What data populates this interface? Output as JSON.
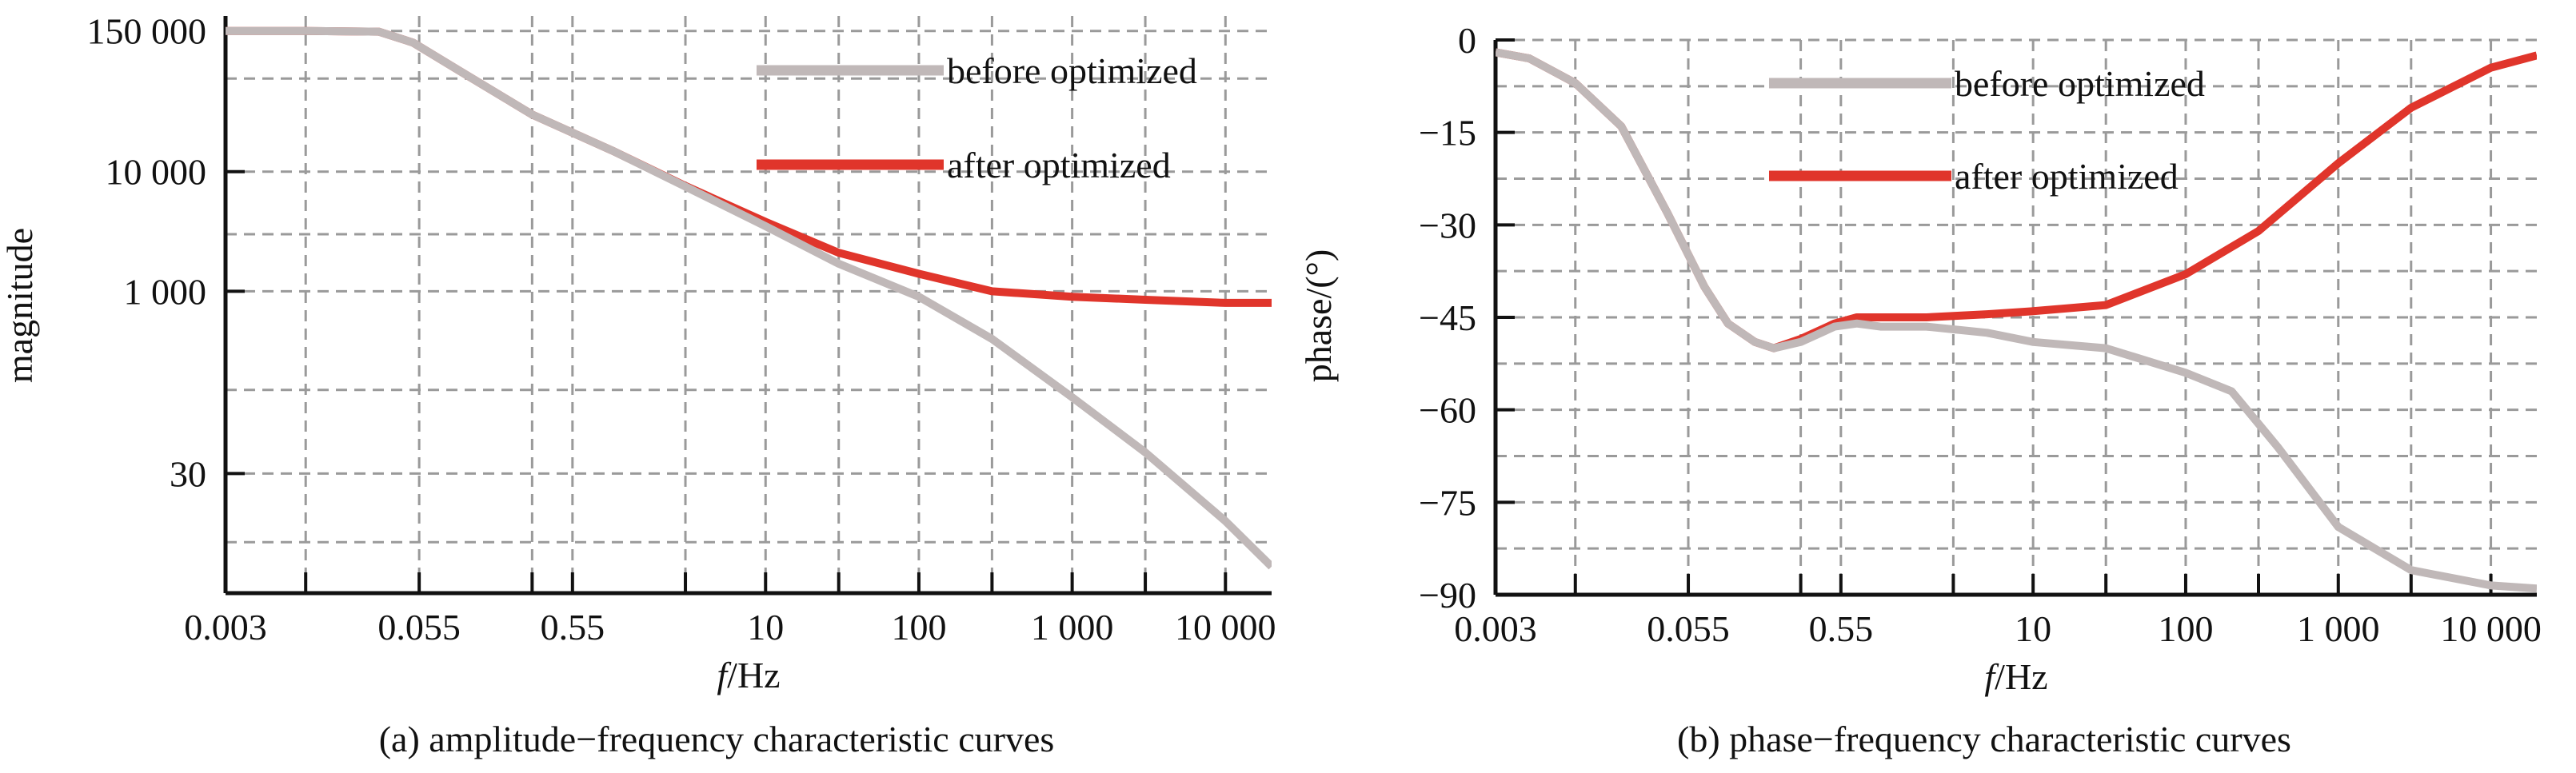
{
  "chart_data": [
    {
      "type": "line",
      "xscale": "log",
      "yscale": "log",
      "xlabel_italic": "f",
      "xlabel_rest": "/Hz",
      "ylabel": "magnitude",
      "caption": "(a) amplitude−frequency characteristic curves",
      "xlim": [
        0.003,
        20000
      ],
      "ylim": [
        3,
        200000
      ],
      "xticks": [
        {
          "value": 0.003,
          "label": "0.003"
        },
        {
          "value": 0.055,
          "label": "0.055"
        },
        {
          "value": 0.55,
          "label": "0.55"
        },
        {
          "value": 10,
          "label": "10"
        },
        {
          "value": 100,
          "label": "100"
        },
        {
          "value": 1000,
          "label": "1 000"
        },
        {
          "value": 10000,
          "label": "10 000"
        }
      ],
      "yticks": [
        {
          "value": 30,
          "label": "30"
        },
        {
          "value": 1000,
          "label": "1 000"
        },
        {
          "value": 10000,
          "label": "10 000"
        },
        {
          "value": 150000,
          "label": "150 000"
        }
      ],
      "legend": {
        "placement": "top-right"
      },
      "grid": true,
      "series": [
        {
          "name": "before optimized",
          "color": "#c0b8b8",
          "x": [
            0.003,
            0.01,
            0.03,
            0.05,
            0.1,
            0.3,
            1,
            3,
            10,
            30,
            100,
            300,
            1000,
            3000,
            10000,
            20000
          ],
          "y": [
            150000,
            150000,
            148000,
            120000,
            70000,
            30000,
            15000,
            7500,
            3500,
            1700,
            900,
            400,
            130,
            45,
            12,
            5
          ]
        },
        {
          "name": "after optimized",
          "color": "#e0352b",
          "x": [
            0.003,
            0.01,
            0.03,
            0.05,
            0.1,
            0.3,
            1,
            3,
            10,
            30,
            100,
            300,
            1000,
            3000,
            10000,
            20000
          ],
          "y": [
            150000,
            150000,
            148000,
            120000,
            70000,
            30000,
            15000,
            7600,
            3800,
            2100,
            1400,
            1000,
            900,
            850,
            800,
            800
          ]
        }
      ]
    },
    {
      "type": "line",
      "xscale": "log",
      "xlabel_italic": "f",
      "xlabel_rest": "/Hz",
      "ylabel": "phase/(°)",
      "caption": "(b) phase−frequency characteristic curves",
      "xlim": [
        0.003,
        20000
      ],
      "ylim": [
        -90,
        0
      ],
      "xticks": [
        {
          "value": 0.003,
          "label": "0.003"
        },
        {
          "value": 0.055,
          "label": "0.055"
        },
        {
          "value": 0.55,
          "label": "0.55"
        },
        {
          "value": 10,
          "label": "10"
        },
        {
          "value": 100,
          "label": "100"
        },
        {
          "value": 1000,
          "label": "1 000"
        },
        {
          "value": 10000,
          "label": "10 000"
        }
      ],
      "yticks": [
        {
          "value": 0,
          "label": "0"
        },
        {
          "value": -15,
          "label": "−15"
        },
        {
          "value": -30,
          "label": "−30"
        },
        {
          "value": -45,
          "label": "−45"
        },
        {
          "value": -60,
          "label": "−60"
        },
        {
          "value": -75,
          "label": "−75"
        },
        {
          "value": -90,
          "label": "−90"
        }
      ],
      "legend": {
        "placement": "top-center"
      },
      "grid": true,
      "series": [
        {
          "name": "before optimized",
          "color": "#c0b8b8",
          "x": [
            0.003,
            0.005,
            0.01,
            0.02,
            0.04,
            0.07,
            0.1,
            0.15,
            0.2,
            0.3,
            0.5,
            0.7,
            1,
            2,
            5,
            10,
            30,
            100,
            200,
            400,
            1000,
            3000,
            10000,
            20000
          ],
          "y": [
            -2,
            -3,
            -7,
            -14,
            -28,
            -40,
            -46,
            -49,
            -50,
            -49,
            -46.5,
            -46,
            -46.5,
            -46.5,
            -47.5,
            -49,
            -50,
            -54,
            -57,
            -66,
            -79,
            -86,
            -88.5,
            -89
          ]
        },
        {
          "name": "after optimized",
          "color": "#e0352b",
          "x": [
            0.003,
            0.005,
            0.01,
            0.02,
            0.04,
            0.07,
            0.1,
            0.15,
            0.2,
            0.3,
            0.5,
            0.7,
            1,
            2,
            5,
            10,
            30,
            100,
            300,
            1000,
            3000,
            10000,
            20000
          ],
          "y": [
            -2,
            -3,
            -7,
            -14,
            -28,
            -40,
            -46,
            -49,
            -50,
            -48.5,
            -46,
            -45,
            -45,
            -45,
            -44.5,
            -44,
            -43,
            -38,
            -31,
            -20,
            -11,
            -4.5,
            -2.5
          ]
        }
      ]
    }
  ]
}
